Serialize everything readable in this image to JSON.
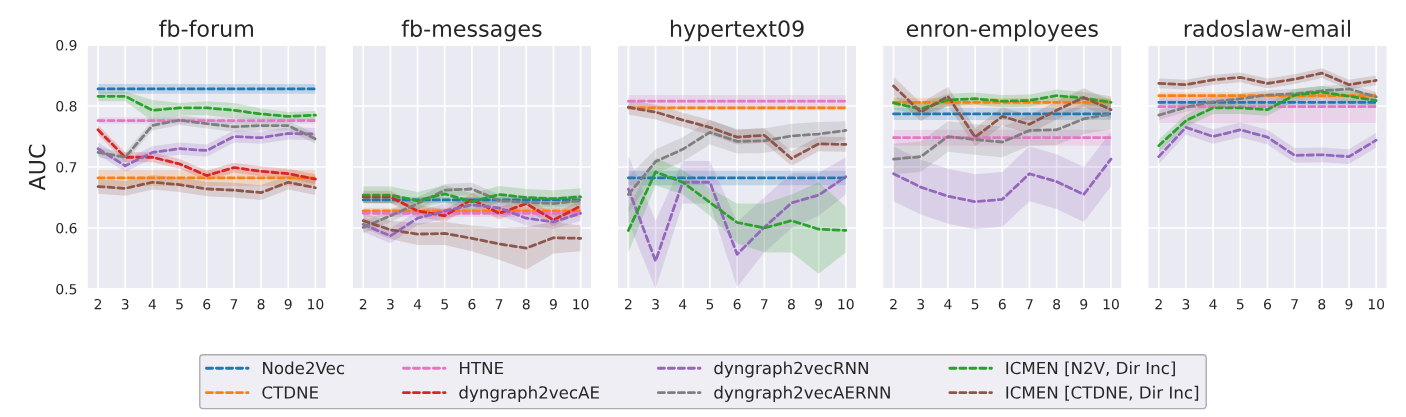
{
  "chart_data": [
    {
      "type": "line",
      "title": "fb-forum",
      "ylabel": "AUC",
      "x": [
        2,
        3,
        4,
        5,
        6,
        7,
        8,
        9,
        10
      ],
      "xlim": [
        1.6,
        10.4
      ],
      "xticks": [
        2,
        3,
        4,
        5,
        6,
        7,
        8,
        9,
        10
      ],
      "ylim": [
        0.5,
        0.9
      ],
      "yticks": [
        0.5,
        0.6,
        0.7,
        0.8,
        0.9
      ],
      "grid": true,
      "legend": "bottom",
      "line_style": "dashed",
      "marker": "none",
      "series": [
        {
          "name": "Node2Vec",
          "color": "#1f77b4",
          "values": [
            0.828,
            0.828,
            0.828,
            0.828,
            0.828,
            0.828,
            0.828,
            0.828,
            0.828
          ],
          "lower": [
            0.82,
            0.82,
            0.82,
            0.82,
            0.82,
            0.82,
            0.82,
            0.82,
            0.82
          ],
          "upper": [
            0.836,
            0.836,
            0.836,
            0.836,
            0.836,
            0.836,
            0.836,
            0.836,
            0.836
          ]
        },
        {
          "name": "CTDNE",
          "color": "#ff7f0e",
          "values": [
            0.682,
            0.682,
            0.682,
            0.682,
            0.682,
            0.682,
            0.682,
            0.682,
            0.682
          ],
          "lower": [
            0.669,
            0.669,
            0.669,
            0.669,
            0.669,
            0.669,
            0.669,
            0.669,
            0.669
          ],
          "upper": [
            0.695,
            0.695,
            0.695,
            0.695,
            0.695,
            0.695,
            0.695,
            0.695,
            0.695
          ]
        },
        {
          "name": "HTNE",
          "color": "#e377c2",
          "values": [
            0.776,
            0.776,
            0.776,
            0.776,
            0.776,
            0.776,
            0.776,
            0.776,
            0.776
          ],
          "lower": [
            0.771,
            0.771,
            0.771,
            0.771,
            0.771,
            0.771,
            0.771,
            0.771,
            0.771
          ],
          "upper": [
            0.781,
            0.781,
            0.781,
            0.781,
            0.781,
            0.781,
            0.781,
            0.781,
            0.781
          ]
        },
        {
          "name": "dyngraph2vecAE",
          "color": "#d62728",
          "values": [
            0.761,
            0.716,
            0.716,
            0.705,
            0.686,
            0.699,
            0.693,
            0.689,
            0.68
          ],
          "lower": [
            0.753,
            0.708,
            0.708,
            0.697,
            0.678,
            0.691,
            0.685,
            0.681,
            0.672
          ],
          "upper": [
            0.769,
            0.724,
            0.724,
            0.713,
            0.694,
            0.707,
            0.701,
            0.697,
            0.688
          ]
        },
        {
          "name": "dyngraph2vecRNN",
          "color": "#9467bd",
          "values": [
            0.73,
            0.702,
            0.724,
            0.73,
            0.727,
            0.75,
            0.748,
            0.755,
            0.754
          ],
          "lower": [
            0.72,
            0.692,
            0.714,
            0.72,
            0.717,
            0.74,
            0.738,
            0.745,
            0.744
          ],
          "upper": [
            0.74,
            0.712,
            0.734,
            0.74,
            0.737,
            0.76,
            0.758,
            0.765,
            0.764
          ]
        },
        {
          "name": "dyngraph2vecAERNN",
          "color": "#7f7f7f",
          "values": [
            0.724,
            0.716,
            0.768,
            0.777,
            0.771,
            0.766,
            0.768,
            0.768,
            0.746
          ],
          "lower": [
            0.716,
            0.708,
            0.76,
            0.769,
            0.763,
            0.758,
            0.76,
            0.76,
            0.738
          ],
          "upper": [
            0.732,
            0.724,
            0.776,
            0.785,
            0.779,
            0.774,
            0.776,
            0.776,
            0.754
          ]
        },
        {
          "name": "ICMEN [N2V, Dir Inc]",
          "color": "#2ca02c",
          "values": [
            0.816,
            0.816,
            0.793,
            0.797,
            0.797,
            0.793,
            0.787,
            0.783,
            0.785
          ],
          "lower": [
            0.808,
            0.808,
            0.775,
            0.785,
            0.785,
            0.78,
            0.778,
            0.776,
            0.778
          ],
          "upper": [
            0.824,
            0.824,
            0.81,
            0.805,
            0.808,
            0.805,
            0.796,
            0.79,
            0.792
          ]
        },
        {
          "name": "ICMEN [CTDNE, Dir Inc]",
          "color": "#8c564b",
          "values": [
            0.668,
            0.665,
            0.675,
            0.671,
            0.664,
            0.662,
            0.658,
            0.675,
            0.666
          ],
          "lower": [
            0.656,
            0.653,
            0.663,
            0.659,
            0.652,
            0.65,
            0.646,
            0.663,
            0.654
          ],
          "upper": [
            0.68,
            0.677,
            0.687,
            0.683,
            0.676,
            0.674,
            0.67,
            0.687,
            0.678
          ]
        }
      ]
    },
    {
      "type": "line",
      "title": "fb-messages",
      "x": [
        2,
        3,
        4,
        5,
        6,
        7,
        8,
        9,
        10
      ],
      "xlim": [
        1.6,
        10.4
      ],
      "xticks": [
        2,
        3,
        4,
        5,
        6,
        7,
        8,
        9,
        10
      ],
      "ylim": [
        0.5,
        0.9
      ],
      "yticks": [
        0.5,
        0.6,
        0.7,
        0.8,
        0.9
      ],
      "tick_labels": "x",
      "grid": true,
      "line_style": "dashed",
      "marker": "none",
      "series": [
        {
          "name": "Node2Vec",
          "color": "#1f77b4",
          "values": [
            0.646,
            0.646,
            0.646,
            0.646,
            0.646,
            0.646,
            0.646,
            0.646,
            0.646
          ],
          "lower": [
            0.641,
            0.641,
            0.641,
            0.641,
            0.641,
            0.641,
            0.641,
            0.641,
            0.641
          ],
          "upper": [
            0.651,
            0.651,
            0.651,
            0.651,
            0.651,
            0.651,
            0.651,
            0.651,
            0.651
          ]
        },
        {
          "name": "CTDNE",
          "color": "#ff7f0e",
          "values": [
            0.628,
            0.628,
            0.628,
            0.628,
            0.628,
            0.628,
            0.628,
            0.628,
            0.628
          ],
          "lower": [
            0.623,
            0.623,
            0.623,
            0.623,
            0.623,
            0.623,
            0.623,
            0.623,
            0.623
          ],
          "upper": [
            0.633,
            0.633,
            0.633,
            0.633,
            0.633,
            0.633,
            0.633,
            0.633,
            0.633
          ]
        },
        {
          "name": "HTNE",
          "color": "#e377c2",
          "values": [
            0.624,
            0.624,
            0.624,
            0.624,
            0.624,
            0.624,
            0.624,
            0.624,
            0.624
          ],
          "lower": [
            0.618,
            0.618,
            0.618,
            0.618,
            0.618,
            0.618,
            0.618,
            0.618,
            0.618
          ],
          "upper": [
            0.63,
            0.63,
            0.63,
            0.63,
            0.63,
            0.63,
            0.63,
            0.63,
            0.63
          ]
        },
        {
          "name": "dyngraph2vecAE",
          "color": "#d62728",
          "values": [
            0.651,
            0.651,
            0.628,
            0.62,
            0.647,
            0.624,
            0.64,
            0.613,
            0.636
          ],
          "lower": [
            0.641,
            0.641,
            0.618,
            0.61,
            0.637,
            0.614,
            0.63,
            0.603,
            0.626
          ],
          "upper": [
            0.661,
            0.661,
            0.638,
            0.63,
            0.657,
            0.634,
            0.65,
            0.623,
            0.646
          ]
        },
        {
          "name": "dyngraph2vecRNN",
          "color": "#9467bd",
          "values": [
            0.606,
            0.587,
            0.616,
            0.628,
            0.638,
            0.633,
            0.616,
            0.61,
            0.624
          ],
          "lower": [
            0.594,
            0.575,
            0.604,
            0.616,
            0.626,
            0.621,
            0.604,
            0.598,
            0.612
          ],
          "upper": [
            0.618,
            0.599,
            0.628,
            0.64,
            0.65,
            0.645,
            0.628,
            0.622,
            0.636
          ]
        },
        {
          "name": "dyngraph2vecAERNN",
          "color": "#7f7f7f",
          "values": [
            0.601,
            0.62,
            0.64,
            0.662,
            0.664,
            0.645,
            0.642,
            0.64,
            0.645
          ],
          "lower": [
            0.591,
            0.61,
            0.63,
            0.652,
            0.654,
            0.635,
            0.632,
            0.63,
            0.635
          ],
          "upper": [
            0.611,
            0.63,
            0.65,
            0.672,
            0.674,
            0.655,
            0.652,
            0.65,
            0.655
          ]
        },
        {
          "name": "ICMEN [N2V, Dir Inc]",
          "color": "#2ca02c",
          "values": [
            0.654,
            0.654,
            0.645,
            0.656,
            0.643,
            0.655,
            0.65,
            0.648,
            0.651
          ],
          "lower": [
            0.64,
            0.64,
            0.631,
            0.642,
            0.629,
            0.641,
            0.636,
            0.634,
            0.637
          ],
          "upper": [
            0.668,
            0.668,
            0.659,
            0.67,
            0.657,
            0.669,
            0.664,
            0.662,
            0.665
          ]
        },
        {
          "name": "ICMEN [CTDNE, Dir Inc]",
          "color": "#8c564b",
          "values": [
            0.612,
            0.597,
            0.59,
            0.591,
            0.583,
            0.574,
            0.567,
            0.584,
            0.583
          ],
          "lower": [
            0.6,
            0.582,
            0.572,
            0.572,
            0.562,
            0.548,
            0.532,
            0.558,
            0.562
          ],
          "upper": [
            0.624,
            0.612,
            0.608,
            0.61,
            0.604,
            0.6,
            0.602,
            0.61,
            0.604
          ]
        }
      ]
    },
    {
      "type": "line",
      "title": "hypertext09",
      "x": [
        2,
        3,
        4,
        5,
        6,
        7,
        8,
        9,
        10
      ],
      "xlim": [
        1.6,
        10.4
      ],
      "xticks": [
        2,
        3,
        4,
        5,
        6,
        7,
        8,
        9,
        10
      ],
      "ylim": [
        0.5,
        0.9
      ],
      "yticks": [
        0.5,
        0.6,
        0.7,
        0.8,
        0.9
      ],
      "tick_labels": "x",
      "grid": true,
      "line_style": "dashed",
      "marker": "none",
      "series": [
        {
          "name": "Node2Vec",
          "color": "#1f77b4",
          "values": [
            0.682,
            0.682,
            0.682,
            0.682,
            0.682,
            0.682,
            0.682,
            0.682,
            0.682
          ],
          "lower": [
            0.67,
            0.67,
            0.67,
            0.67,
            0.67,
            0.67,
            0.67,
            0.67,
            0.67
          ],
          "upper": [
            0.694,
            0.694,
            0.694,
            0.694,
            0.694,
            0.694,
            0.694,
            0.694,
            0.694
          ]
        },
        {
          "name": "CTDNE",
          "color": "#ff7f0e",
          "values": [
            0.797,
            0.797,
            0.797,
            0.797,
            0.797,
            0.797,
            0.797,
            0.797,
            0.797
          ],
          "lower": [
            0.793,
            0.793,
            0.793,
            0.793,
            0.793,
            0.793,
            0.793,
            0.793,
            0.793
          ],
          "upper": [
            0.801,
            0.801,
            0.801,
            0.801,
            0.801,
            0.801,
            0.801,
            0.801,
            0.801
          ]
        },
        {
          "name": "HTNE",
          "color": "#e377c2",
          "values": [
            0.808,
            0.808,
            0.808,
            0.808,
            0.808,
            0.808,
            0.808,
            0.808,
            0.808
          ],
          "lower": [
            0.798,
            0.798,
            0.798,
            0.798,
            0.798,
            0.798,
            0.798,
            0.798,
            0.798
          ],
          "upper": [
            0.818,
            0.818,
            0.818,
            0.818,
            0.818,
            0.818,
            0.818,
            0.818,
            0.818
          ]
        },
        {
          "name": "dyngraph2vecAE",
          "color": "#d62728",
          "values": [
            null,
            null,
            null,
            null,
            null,
            null,
            null,
            null,
            null
          ]
        },
        {
          "name": "dyngraph2vecRNN",
          "color": "#9467bd",
          "values": [
            0.664,
            0.546,
            0.675,
            0.675,
            0.557,
            0.601,
            0.641,
            0.654,
            0.684
          ],
          "lower": [
            0.61,
            0.5,
            0.64,
            0.64,
            0.503,
            0.56,
            0.6,
            0.62,
            0.655
          ],
          "upper": [
            0.718,
            0.612,
            0.71,
            0.71,
            0.61,
            0.65,
            0.69,
            0.69,
            0.716
          ]
        },
        {
          "name": "dyngraph2vecAERNN",
          "color": "#7f7f7f",
          "values": [
            0.655,
            0.709,
            0.729,
            0.757,
            0.742,
            0.743,
            0.751,
            0.754,
            0.76
          ],
          "lower": [
            0.625,
            0.689,
            0.709,
            0.737,
            0.722,
            0.723,
            0.731,
            0.734,
            0.745
          ],
          "upper": [
            0.685,
            0.729,
            0.749,
            0.777,
            0.762,
            0.763,
            0.771,
            0.774,
            0.775
          ]
        },
        {
          "name": "ICMEN [N2V, Dir Inc]",
          "color": "#2ca02c",
          "values": [
            0.596,
            0.692,
            0.675,
            0.642,
            0.609,
            0.6,
            0.612,
            0.598,
            0.596
          ],
          "lower": [
            0.56,
            0.67,
            0.655,
            0.62,
            0.575,
            0.56,
            0.56,
            0.525,
            0.56
          ],
          "upper": [
            0.635,
            0.715,
            0.695,
            0.665,
            0.64,
            0.64,
            0.655,
            0.675,
            0.635
          ]
        },
        {
          "name": "ICMEN [CTDNE, Dir Inc]",
          "color": "#8c564b",
          "values": [
            0.798,
            0.79,
            0.777,
            0.765,
            0.749,
            0.752,
            0.714,
            0.738,
            0.737
          ],
          "lower": [
            0.786,
            0.778,
            0.765,
            0.753,
            0.737,
            0.74,
            0.702,
            0.726,
            0.725
          ],
          "upper": [
            0.81,
            0.802,
            0.789,
            0.777,
            0.761,
            0.764,
            0.726,
            0.75,
            0.749
          ]
        }
      ]
    },
    {
      "type": "line",
      "title": "enron-employees",
      "x": [
        2,
        3,
        4,
        5,
        6,
        7,
        8,
        9,
        10
      ],
      "xlim": [
        1.6,
        10.4
      ],
      "xticks": [
        2,
        3,
        4,
        5,
        6,
        7,
        8,
        9,
        10
      ],
      "ylim": [
        0.5,
        0.9
      ],
      "yticks": [
        0.5,
        0.6,
        0.7,
        0.8,
        0.9
      ],
      "tick_labels": "x",
      "grid": true,
      "line_style": "dashed",
      "marker": "none",
      "series": [
        {
          "name": "Node2Vec",
          "color": "#1f77b4",
          "values": [
            0.787,
            0.787,
            0.787,
            0.787,
            0.787,
            0.787,
            0.787,
            0.787,
            0.787
          ],
          "lower": [
            0.777,
            0.777,
            0.777,
            0.777,
            0.777,
            0.777,
            0.777,
            0.777,
            0.777
          ],
          "upper": [
            0.797,
            0.797,
            0.797,
            0.797,
            0.797,
            0.797,
            0.797,
            0.797,
            0.797
          ]
        },
        {
          "name": "CTDNE",
          "color": "#ff7f0e",
          "values": [
            0.806,
            0.806,
            0.806,
            0.806,
            0.806,
            0.806,
            0.806,
            0.806,
            0.806
          ],
          "lower": [
            0.799,
            0.799,
            0.799,
            0.799,
            0.799,
            0.799,
            0.799,
            0.799,
            0.799
          ],
          "upper": [
            0.813,
            0.813,
            0.813,
            0.813,
            0.813,
            0.813,
            0.813,
            0.813,
            0.813
          ]
        },
        {
          "name": "HTNE",
          "color": "#e377c2",
          "values": [
            0.748,
            0.748,
            0.748,
            0.748,
            0.748,
            0.748,
            0.748,
            0.748,
            0.748
          ],
          "lower": [
            0.735,
            0.735,
            0.735,
            0.735,
            0.735,
            0.735,
            0.735,
            0.735,
            0.735
          ],
          "upper": [
            0.761,
            0.761,
            0.761,
            0.761,
            0.761,
            0.761,
            0.761,
            0.761,
            0.761
          ]
        },
        {
          "name": "dyngraph2vecAE",
          "color": "#d62728",
          "values": [
            null,
            null,
            null,
            null,
            null,
            null,
            null,
            null,
            null
          ]
        },
        {
          "name": "dyngraph2vecRNN",
          "color": "#9467bd",
          "values": [
            0.689,
            0.667,
            0.652,
            0.643,
            0.647,
            0.689,
            0.676,
            0.655,
            0.713
          ],
          "lower": [
            0.644,
            0.622,
            0.607,
            0.598,
            0.602,
            0.644,
            0.631,
            0.61,
            0.668
          ],
          "upper": [
            0.734,
            0.712,
            0.697,
            0.688,
            0.692,
            0.734,
            0.721,
            0.7,
            0.758
          ]
        },
        {
          "name": "dyngraph2vecAERNN",
          "color": "#7f7f7f",
          "values": [
            0.713,
            0.717,
            0.75,
            0.745,
            0.741,
            0.76,
            0.761,
            0.779,
            0.787
          ],
          "lower": [
            0.688,
            0.692,
            0.725,
            0.72,
            0.716,
            0.735,
            0.736,
            0.754,
            0.762
          ],
          "upper": [
            0.738,
            0.742,
            0.775,
            0.77,
            0.766,
            0.785,
            0.786,
            0.804,
            0.812
          ]
        },
        {
          "name": "ICMEN [N2V, Dir Inc]",
          "color": "#2ca02c",
          "values": [
            0.805,
            0.795,
            0.81,
            0.812,
            0.808,
            0.809,
            0.817,
            0.813,
            0.806
          ],
          "lower": [
            0.795,
            0.785,
            0.8,
            0.802,
            0.798,
            0.799,
            0.807,
            0.803,
            0.796
          ],
          "upper": [
            0.815,
            0.805,
            0.82,
            0.822,
            0.818,
            0.819,
            0.827,
            0.823,
            0.816
          ]
        },
        {
          "name": "ICMEN [CTDNE, Dir Inc]",
          "color": "#8c564b",
          "values": [
            0.833,
            0.79,
            0.816,
            0.749,
            0.783,
            0.77,
            0.793,
            0.814,
            0.794
          ],
          "lower": [
            0.818,
            0.775,
            0.801,
            0.734,
            0.768,
            0.755,
            0.778,
            0.799,
            0.779
          ],
          "upper": [
            0.848,
            0.805,
            0.831,
            0.764,
            0.798,
            0.785,
            0.808,
            0.829,
            0.809
          ]
        }
      ]
    },
    {
      "type": "line",
      "title": "radoslaw-email",
      "x": [
        2,
        3,
        4,
        5,
        6,
        7,
        8,
        9,
        10
      ],
      "xlim": [
        1.6,
        10.4
      ],
      "xticks": [
        2,
        3,
        4,
        5,
        6,
        7,
        8,
        9,
        10
      ],
      "ylim": [
        0.5,
        0.9
      ],
      "yticks": [
        0.5,
        0.6,
        0.7,
        0.8,
        0.9
      ],
      "tick_labels": "x",
      "grid": true,
      "line_style": "dashed",
      "marker": "none",
      "series": [
        {
          "name": "Node2Vec",
          "color": "#1f77b4",
          "values": [
            0.806,
            0.806,
            0.806,
            0.806,
            0.806,
            0.806,
            0.806,
            0.806,
            0.806
          ],
          "lower": [
            0.801,
            0.801,
            0.801,
            0.801,
            0.801,
            0.801,
            0.801,
            0.801,
            0.801
          ],
          "upper": [
            0.811,
            0.811,
            0.811,
            0.811,
            0.811,
            0.811,
            0.811,
            0.811,
            0.811
          ]
        },
        {
          "name": "CTDNE",
          "color": "#ff7f0e",
          "values": [
            0.817,
            0.817,
            0.817,
            0.817,
            0.817,
            0.817,
            0.817,
            0.817,
            0.817
          ],
          "lower": [
            0.812,
            0.812,
            0.812,
            0.812,
            0.812,
            0.812,
            0.812,
            0.812,
            0.812
          ],
          "upper": [
            0.822,
            0.822,
            0.822,
            0.822,
            0.822,
            0.822,
            0.822,
            0.822,
            0.822
          ]
        },
        {
          "name": "HTNE",
          "color": "#e377c2",
          "values": [
            0.799,
            0.799,
            0.799,
            0.799,
            0.799,
            0.799,
            0.799,
            0.799,
            0.799
          ],
          "lower": [
            0.772,
            0.772,
            0.772,
            0.772,
            0.772,
            0.772,
            0.772,
            0.772,
            0.772
          ],
          "upper": [
            0.818,
            0.818,
            0.818,
            0.818,
            0.818,
            0.818,
            0.818,
            0.818,
            0.818
          ]
        },
        {
          "name": "dyngraph2vecAE",
          "color": "#d62728",
          "values": [
            null,
            null,
            null,
            null,
            null,
            null,
            null,
            null,
            null
          ]
        },
        {
          "name": "dyngraph2vecRNN",
          "color": "#9467bd",
          "values": [
            0.717,
            0.765,
            0.75,
            0.761,
            0.749,
            0.719,
            0.72,
            0.717,
            0.744
          ],
          "lower": [
            0.705,
            0.753,
            0.738,
            0.749,
            0.737,
            0.707,
            0.708,
            0.705,
            0.732
          ],
          "upper": [
            0.729,
            0.777,
            0.762,
            0.773,
            0.761,
            0.731,
            0.732,
            0.729,
            0.756
          ]
        },
        {
          "name": "dyngraph2vecAERNN",
          "color": "#7f7f7f",
          "values": [
            0.785,
            0.798,
            0.807,
            0.812,
            0.818,
            0.82,
            0.825,
            0.828,
            0.815
          ],
          "lower": [
            0.777,
            0.79,
            0.799,
            0.804,
            0.81,
            0.812,
            0.817,
            0.82,
            0.807
          ],
          "upper": [
            0.793,
            0.806,
            0.815,
            0.82,
            0.826,
            0.828,
            0.833,
            0.836,
            0.823
          ]
        },
        {
          "name": "ICMEN [N2V, Dir Inc]",
          "color": "#2ca02c",
          "values": [
            0.735,
            0.776,
            0.797,
            0.797,
            0.794,
            0.818,
            0.823,
            0.816,
            0.809
          ],
          "lower": [
            0.725,
            0.766,
            0.787,
            0.787,
            0.784,
            0.808,
            0.813,
            0.806,
            0.799
          ],
          "upper": [
            0.745,
            0.786,
            0.807,
            0.807,
            0.804,
            0.828,
            0.833,
            0.826,
            0.819
          ]
        },
        {
          "name": "ICMEN [CTDNE, Dir Inc]",
          "color": "#8c564b",
          "values": [
            0.837,
            0.835,
            0.843,
            0.847,
            0.837,
            0.844,
            0.854,
            0.835,
            0.842
          ],
          "lower": [
            0.829,
            0.827,
            0.835,
            0.839,
            0.829,
            0.836,
            0.846,
            0.827,
            0.834
          ],
          "upper": [
            0.845,
            0.843,
            0.851,
            0.855,
            0.845,
            0.852,
            0.862,
            0.843,
            0.85
          ]
        }
      ]
    }
  ]
}
